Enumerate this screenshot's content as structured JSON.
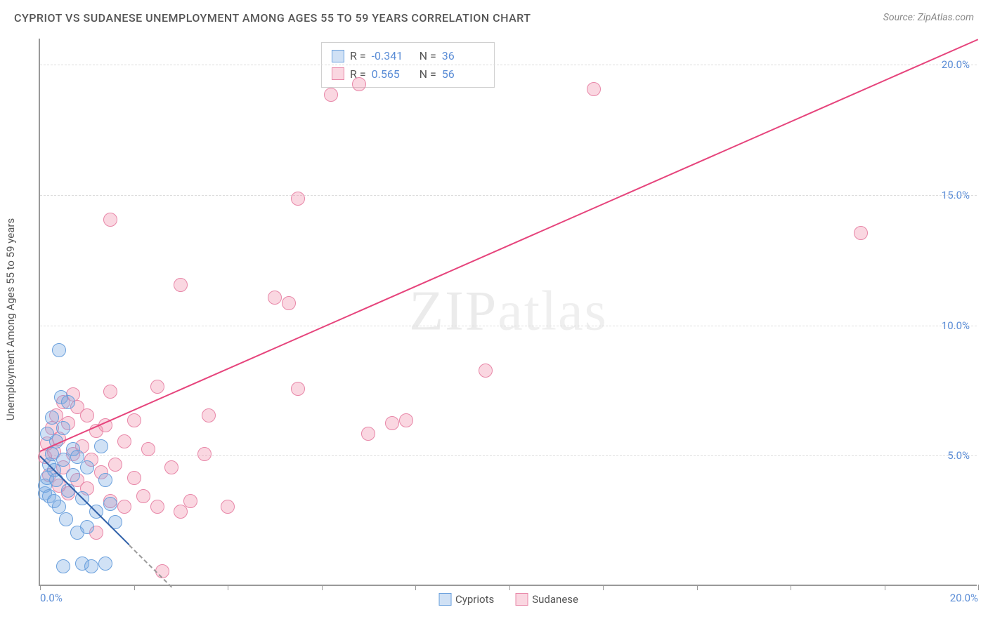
{
  "header": {
    "title": "CYPRIOT VS SUDANESE UNEMPLOYMENT AMONG AGES 55 TO 59 YEARS CORRELATION CHART",
    "source": "Source: ZipAtlas.com"
  },
  "chart": {
    "type": "scatter",
    "ylabel": "Unemployment Among Ages 55 to 59 years",
    "watermark": "ZIPatlas",
    "xlim": [
      0,
      20
    ],
    "ylim": [
      0,
      21
    ],
    "xtick_labels": {
      "left": "0.0%",
      "right": "20.0%"
    },
    "xtick_positions": [
      0,
      2,
      4,
      6,
      8,
      10,
      12,
      14,
      16,
      18,
      20
    ],
    "ytick_labels": [
      "5.0%",
      "10.0%",
      "15.0%",
      "20.0%"
    ],
    "ytick_positions": [
      5,
      10,
      15,
      20
    ],
    "grid_color": "#dddddd",
    "axis_color": "#999999",
    "tick_label_color": "#5b8dd6",
    "background_color": "#ffffff",
    "marker_radius": 10,
    "series": {
      "cypriots": {
        "label": "Cypriots",
        "fill": "rgba(120,170,225,0.35)",
        "stroke": "#6aa0dd",
        "trend_color": "#2e5fa8",
        "R": "-0.341",
        "N": "36",
        "trend": {
          "x1": 0,
          "y1": 5.0,
          "x2": 1.9,
          "y2": 1.6
        },
        "trend_ext": {
          "x1": 1.9,
          "y1": 1.6,
          "x2": 2.8,
          "y2": 0
        },
        "points": [
          [
            0.1,
            3.5
          ],
          [
            0.1,
            3.8
          ],
          [
            0.15,
            4.1
          ],
          [
            0.2,
            3.4
          ],
          [
            0.2,
            4.6
          ],
          [
            0.25,
            5.0
          ],
          [
            0.3,
            3.2
          ],
          [
            0.3,
            4.4
          ],
          [
            0.35,
            5.5
          ],
          [
            0.4,
            3.0
          ],
          [
            0.4,
            9.0
          ],
          [
            0.45,
            7.2
          ],
          [
            0.5,
            4.8
          ],
          [
            0.5,
            6.0
          ],
          [
            0.55,
            2.5
          ],
          [
            0.6,
            3.6
          ],
          [
            0.6,
            7.0
          ],
          [
            0.7,
            4.2
          ],
          [
            0.7,
            5.2
          ],
          [
            0.8,
            2.0
          ],
          [
            0.8,
            4.9
          ],
          [
            0.9,
            0.8
          ],
          [
            0.9,
            3.3
          ],
          [
            1.0,
            2.2
          ],
          [
            1.0,
            4.5
          ],
          [
            1.1,
            0.7
          ],
          [
            1.2,
            2.8
          ],
          [
            1.3,
            5.3
          ],
          [
            1.4,
            0.8
          ],
          [
            1.4,
            4.0
          ],
          [
            1.5,
            3.1
          ],
          [
            1.6,
            2.4
          ],
          [
            0.5,
            0.7
          ],
          [
            0.25,
            6.4
          ],
          [
            0.35,
            4.0
          ],
          [
            0.15,
            5.8
          ]
        ]
      },
      "sudanese": {
        "label": "Sudanese",
        "fill": "rgba(240,140,170,0.35)",
        "stroke": "#e887a8",
        "trend_color": "#e6447c",
        "R": "0.565",
        "N": "56",
        "trend": {
          "x1": 0,
          "y1": 5.2,
          "x2": 20,
          "y2": 21
        },
        "points": [
          [
            0.1,
            4.9
          ],
          [
            0.15,
            5.4
          ],
          [
            0.2,
            4.2
          ],
          [
            0.25,
            6.0
          ],
          [
            0.3,
            5.1
          ],
          [
            0.35,
            6.5
          ],
          [
            0.4,
            3.8
          ],
          [
            0.4,
            5.6
          ],
          [
            0.5,
            4.5
          ],
          [
            0.5,
            7.0
          ],
          [
            0.6,
            3.5
          ],
          [
            0.6,
            6.2
          ],
          [
            0.7,
            5.0
          ],
          [
            0.7,
            7.3
          ],
          [
            0.8,
            4.0
          ],
          [
            0.8,
            6.8
          ],
          [
            0.9,
            5.3
          ],
          [
            1.0,
            3.7
          ],
          [
            1.0,
            6.5
          ],
          [
            1.1,
            4.8
          ],
          [
            1.2,
            2.0
          ],
          [
            1.2,
            5.9
          ],
          [
            1.3,
            4.3
          ],
          [
            1.4,
            6.1
          ],
          [
            1.5,
            3.2
          ],
          [
            1.5,
            7.4
          ],
          [
            1.6,
            4.6
          ],
          [
            1.8,
            5.5
          ],
          [
            1.8,
            3.0
          ],
          [
            2.0,
            4.1
          ],
          [
            2.0,
            6.3
          ],
          [
            2.2,
            3.4
          ],
          [
            2.3,
            5.2
          ],
          [
            2.5,
            3.0
          ],
          [
            2.5,
            7.6
          ],
          [
            2.8,
            4.5
          ],
          [
            3.0,
            2.8
          ],
          [
            3.0,
            11.5
          ],
          [
            3.2,
            3.2
          ],
          [
            3.5,
            5.0
          ],
          [
            3.6,
            6.5
          ],
          [
            4.0,
            3.0
          ],
          [
            5.0,
            11.0
          ],
          [
            5.3,
            10.8
          ],
          [
            5.5,
            7.5
          ],
          [
            5.5,
            14.8
          ],
          [
            6.2,
            18.8
          ],
          [
            6.8,
            19.2
          ],
          [
            7.0,
            5.8
          ],
          [
            7.5,
            6.2
          ],
          [
            7.8,
            6.3
          ],
          [
            9.5,
            8.2
          ],
          [
            11.8,
            19.0
          ],
          [
            17.5,
            13.5
          ],
          [
            1.5,
            14.0
          ],
          [
            2.6,
            0.5
          ]
        ]
      }
    },
    "legend_box": {
      "r_label": "R =",
      "n_label": "N ="
    }
  }
}
